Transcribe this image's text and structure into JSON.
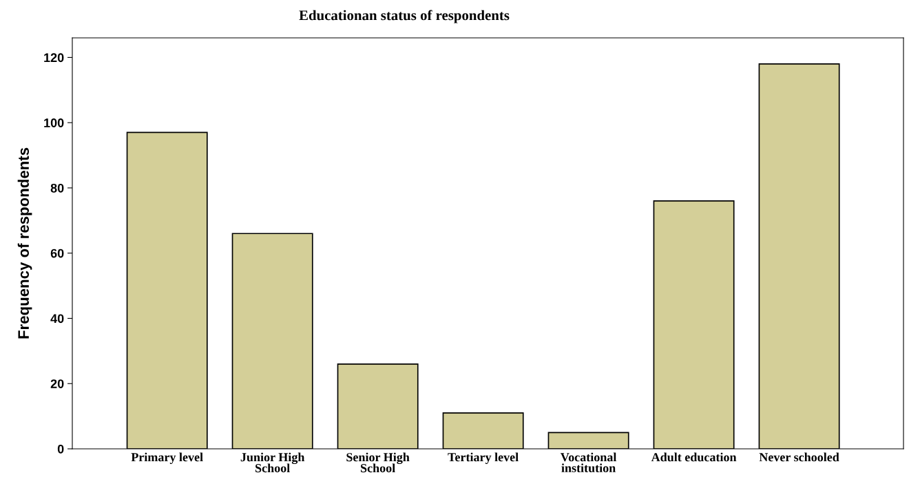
{
  "chart_data": {
    "type": "bar",
    "title": "Educationan status of respondents",
    "ylabel": "Frequency of respondents",
    "categories": [
      "Primary level",
      "Junior High\nSchool",
      "Senior High\nSchool",
      "Tertiary level",
      "Vocational\ninstitution",
      "Adult education",
      "Never schooled"
    ],
    "values": [
      97,
      66,
      26,
      11,
      5,
      76,
      118
    ],
    "color": "#d4cf98",
    "ylim": [
      0,
      126
    ],
    "yticks": [
      0,
      20,
      40,
      60,
      80,
      100,
      120
    ],
    "grid": false
  }
}
